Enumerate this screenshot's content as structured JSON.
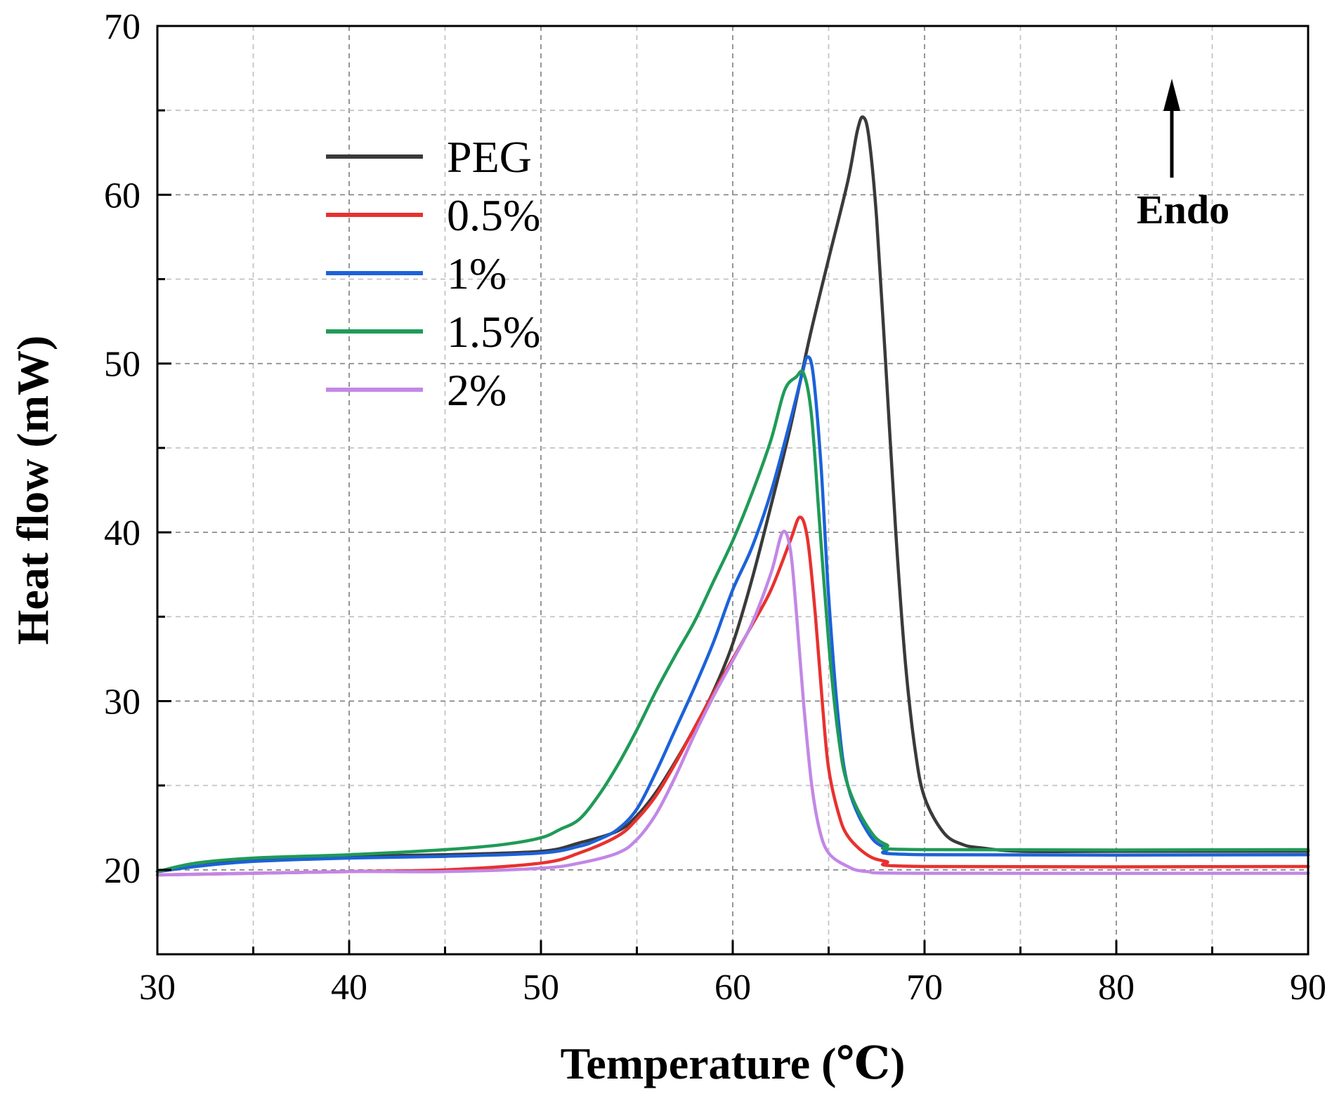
{
  "chart_data": {
    "type": "line",
    "title": "",
    "xlabel": "Temperature (℃)",
    "ylabel": "Heat flow  (mW)",
    "xlim": [
      30,
      90
    ],
    "ylim": [
      15,
      70
    ],
    "xticks": [
      30,
      40,
      50,
      60,
      70,
      80,
      90
    ],
    "xtick_labels": [
      "30",
      "40",
      "50",
      "60",
      "70",
      "80",
      "90"
    ],
    "yticks": [
      20,
      30,
      40,
      50,
      60,
      70
    ],
    "ytick_labels": [
      "20",
      "30",
      "40",
      "50",
      "60",
      "70"
    ],
    "grid": true,
    "legend_position": "top-left",
    "annotation": {
      "text": "Endo",
      "arrow": "up"
    },
    "series": [
      {
        "name": "PEG",
        "color": "#3a3a3a",
        "points": [
          [
            30,
            19.9
          ],
          [
            35,
            20.6
          ],
          [
            40,
            20.8
          ],
          [
            45,
            20.9
          ],
          [
            50,
            21.1
          ],
          [
            52,
            21.6
          ],
          [
            54,
            22.3
          ],
          [
            55,
            23.2
          ],
          [
            56,
            24.6
          ],
          [
            57,
            26.4
          ],
          [
            58,
            28.4
          ],
          [
            59,
            30.6
          ],
          [
            60,
            33.4
          ],
          [
            61,
            37.2
          ],
          [
            62,
            41.6
          ],
          [
            63,
            46.2
          ],
          [
            64,
            51.5
          ],
          [
            65,
            56.2
          ],
          [
            66,
            60.8
          ],
          [
            66.5,
            63.8
          ],
          [
            66.8,
            64.6
          ],
          [
            67.1,
            63.4
          ],
          [
            67.5,
            58.6
          ],
          [
            68,
            49.5
          ],
          [
            68.5,
            40.0
          ],
          [
            69,
            32.3
          ],
          [
            69.5,
            27.2
          ],
          [
            70,
            24.3
          ],
          [
            71,
            22.2
          ],
          [
            72,
            21.5
          ],
          [
            73,
            21.3
          ],
          [
            75,
            21.1
          ],
          [
            80,
            21.1
          ],
          [
            90,
            21.1
          ]
        ]
      },
      {
        "name": "0.5%",
        "color": "#e8312f",
        "points": [
          [
            30,
            19.7
          ],
          [
            35,
            19.8
          ],
          [
            40,
            19.9
          ],
          [
            45,
            20.0
          ],
          [
            50,
            20.4
          ],
          [
            52,
            21.0
          ],
          [
            54,
            22.0
          ],
          [
            55,
            23.0
          ],
          [
            56,
            24.4
          ],
          [
            57,
            26.3
          ],
          [
            58,
            28.4
          ],
          [
            59,
            30.5
          ],
          [
            60,
            32.5
          ],
          [
            61,
            34.5
          ],
          [
            62,
            36.6
          ],
          [
            63,
            39.5
          ],
          [
            63.5,
            40.9
          ],
          [
            63.9,
            39.6
          ],
          [
            64.3,
            35.2
          ],
          [
            64.7,
            29.5
          ],
          [
            65,
            26.0
          ],
          [
            65.5,
            23.4
          ],
          [
            66,
            22.0
          ],
          [
            67,
            20.9
          ],
          [
            68,
            20.5
          ],
          [
            70,
            20.2
          ],
          [
            90,
            20.2
          ]
        ]
      },
      {
        "name": "1%",
        "color": "#1c62d9",
        "points": [
          [
            30,
            19.9
          ],
          [
            32,
            20.2
          ],
          [
            35,
            20.5
          ],
          [
            40,
            20.7
          ],
          [
            45,
            20.8
          ],
          [
            50,
            21.0
          ],
          [
            52,
            21.4
          ],
          [
            53,
            21.8
          ],
          [
            54,
            22.4
          ],
          [
            55,
            23.6
          ],
          [
            56,
            25.8
          ],
          [
            57,
            28.3
          ],
          [
            58,
            30.8
          ],
          [
            59,
            33.5
          ],
          [
            60,
            36.6
          ],
          [
            61,
            39.1
          ],
          [
            62,
            42.4
          ],
          [
            63,
            46.6
          ],
          [
            63.6,
            49.3
          ],
          [
            63.9,
            50.4
          ],
          [
            64.2,
            49.3
          ],
          [
            64.6,
            44.0
          ],
          [
            65,
            36.2
          ],
          [
            65.5,
            29.0
          ],
          [
            66,
            25.0
          ],
          [
            67,
            22.3
          ],
          [
            68,
            21.3
          ],
          [
            70,
            20.9
          ],
          [
            90,
            20.9
          ]
        ]
      },
      {
        "name": "1.5%",
        "color": "#1f9b57",
        "points": [
          [
            30,
            19.9
          ],
          [
            32,
            20.4
          ],
          [
            35,
            20.7
          ],
          [
            40,
            20.9
          ],
          [
            45,
            21.2
          ],
          [
            48,
            21.5
          ],
          [
            50,
            21.9
          ],
          [
            51,
            22.4
          ],
          [
            52,
            23.0
          ],
          [
            53,
            24.4
          ],
          [
            54,
            26.2
          ],
          [
            55,
            28.3
          ],
          [
            56,
            30.6
          ],
          [
            57,
            32.7
          ],
          [
            58,
            34.7
          ],
          [
            59,
            37.1
          ],
          [
            60,
            39.5
          ],
          [
            61,
            42.3
          ],
          [
            62,
            45.5
          ],
          [
            62.7,
            48.4
          ],
          [
            63.3,
            49.2
          ],
          [
            63.7,
            49.4
          ],
          [
            64.1,
            47.0
          ],
          [
            64.5,
            41.0
          ],
          [
            65,
            33.5
          ],
          [
            65.5,
            28.0
          ],
          [
            66,
            25.0
          ],
          [
            67,
            22.6
          ],
          [
            68,
            21.5
          ],
          [
            70,
            21.2
          ],
          [
            90,
            21.2
          ]
        ]
      },
      {
        "name": "2%",
        "color": "#c287e6",
        "points": [
          [
            30,
            19.7
          ],
          [
            35,
            19.8
          ],
          [
            40,
            19.9
          ],
          [
            45,
            19.9
          ],
          [
            50,
            20.1
          ],
          [
            52,
            20.4
          ],
          [
            54,
            21.0
          ],
          [
            55,
            21.8
          ],
          [
            56,
            23.3
          ],
          [
            57,
            25.5
          ],
          [
            58,
            28.0
          ],
          [
            59,
            30.3
          ],
          [
            60,
            32.4
          ],
          [
            61,
            34.6
          ],
          [
            62,
            37.6
          ],
          [
            62.6,
            40.0
          ],
          [
            63,
            39.0
          ],
          [
            63.3,
            35.5
          ],
          [
            63.7,
            29.8
          ],
          [
            64.1,
            25.2
          ],
          [
            64.5,
            22.5
          ],
          [
            65,
            21.0
          ],
          [
            66,
            20.2
          ],
          [
            67,
            19.9
          ],
          [
            70,
            19.8
          ],
          [
            90,
            19.8
          ]
        ]
      }
    ]
  }
}
